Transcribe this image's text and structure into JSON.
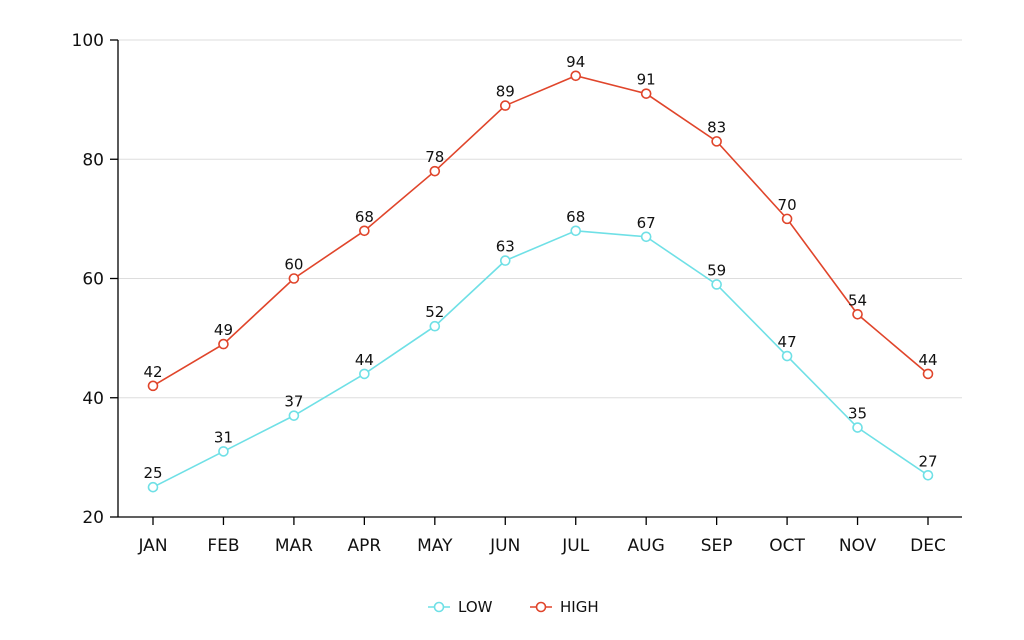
{
  "chart_data": {
    "type": "line",
    "title": "",
    "xlabel": "",
    "ylabel": "",
    "categories": [
      "JAN",
      "FEB",
      "MAR",
      "APR",
      "MAY",
      "JUN",
      "JUL",
      "AUG",
      "SEP",
      "OCT",
      "NOV",
      "DEC"
    ],
    "ylim": [
      20,
      100
    ],
    "yticks": [
      20,
      40,
      60,
      80,
      100
    ],
    "grid": true,
    "legend_position": "bottom",
    "data_labels": true,
    "series": [
      {
        "name": "LOW",
        "color": "#6fe0e6",
        "values": [
          25,
          31,
          37,
          44,
          52,
          63,
          68,
          67,
          59,
          47,
          35,
          27
        ]
      },
      {
        "name": "HIGH",
        "color": "#e0452b",
        "values": [
          42,
          49,
          60,
          68,
          78,
          89,
          94,
          91,
          83,
          70,
          54,
          44
        ]
      }
    ]
  }
}
